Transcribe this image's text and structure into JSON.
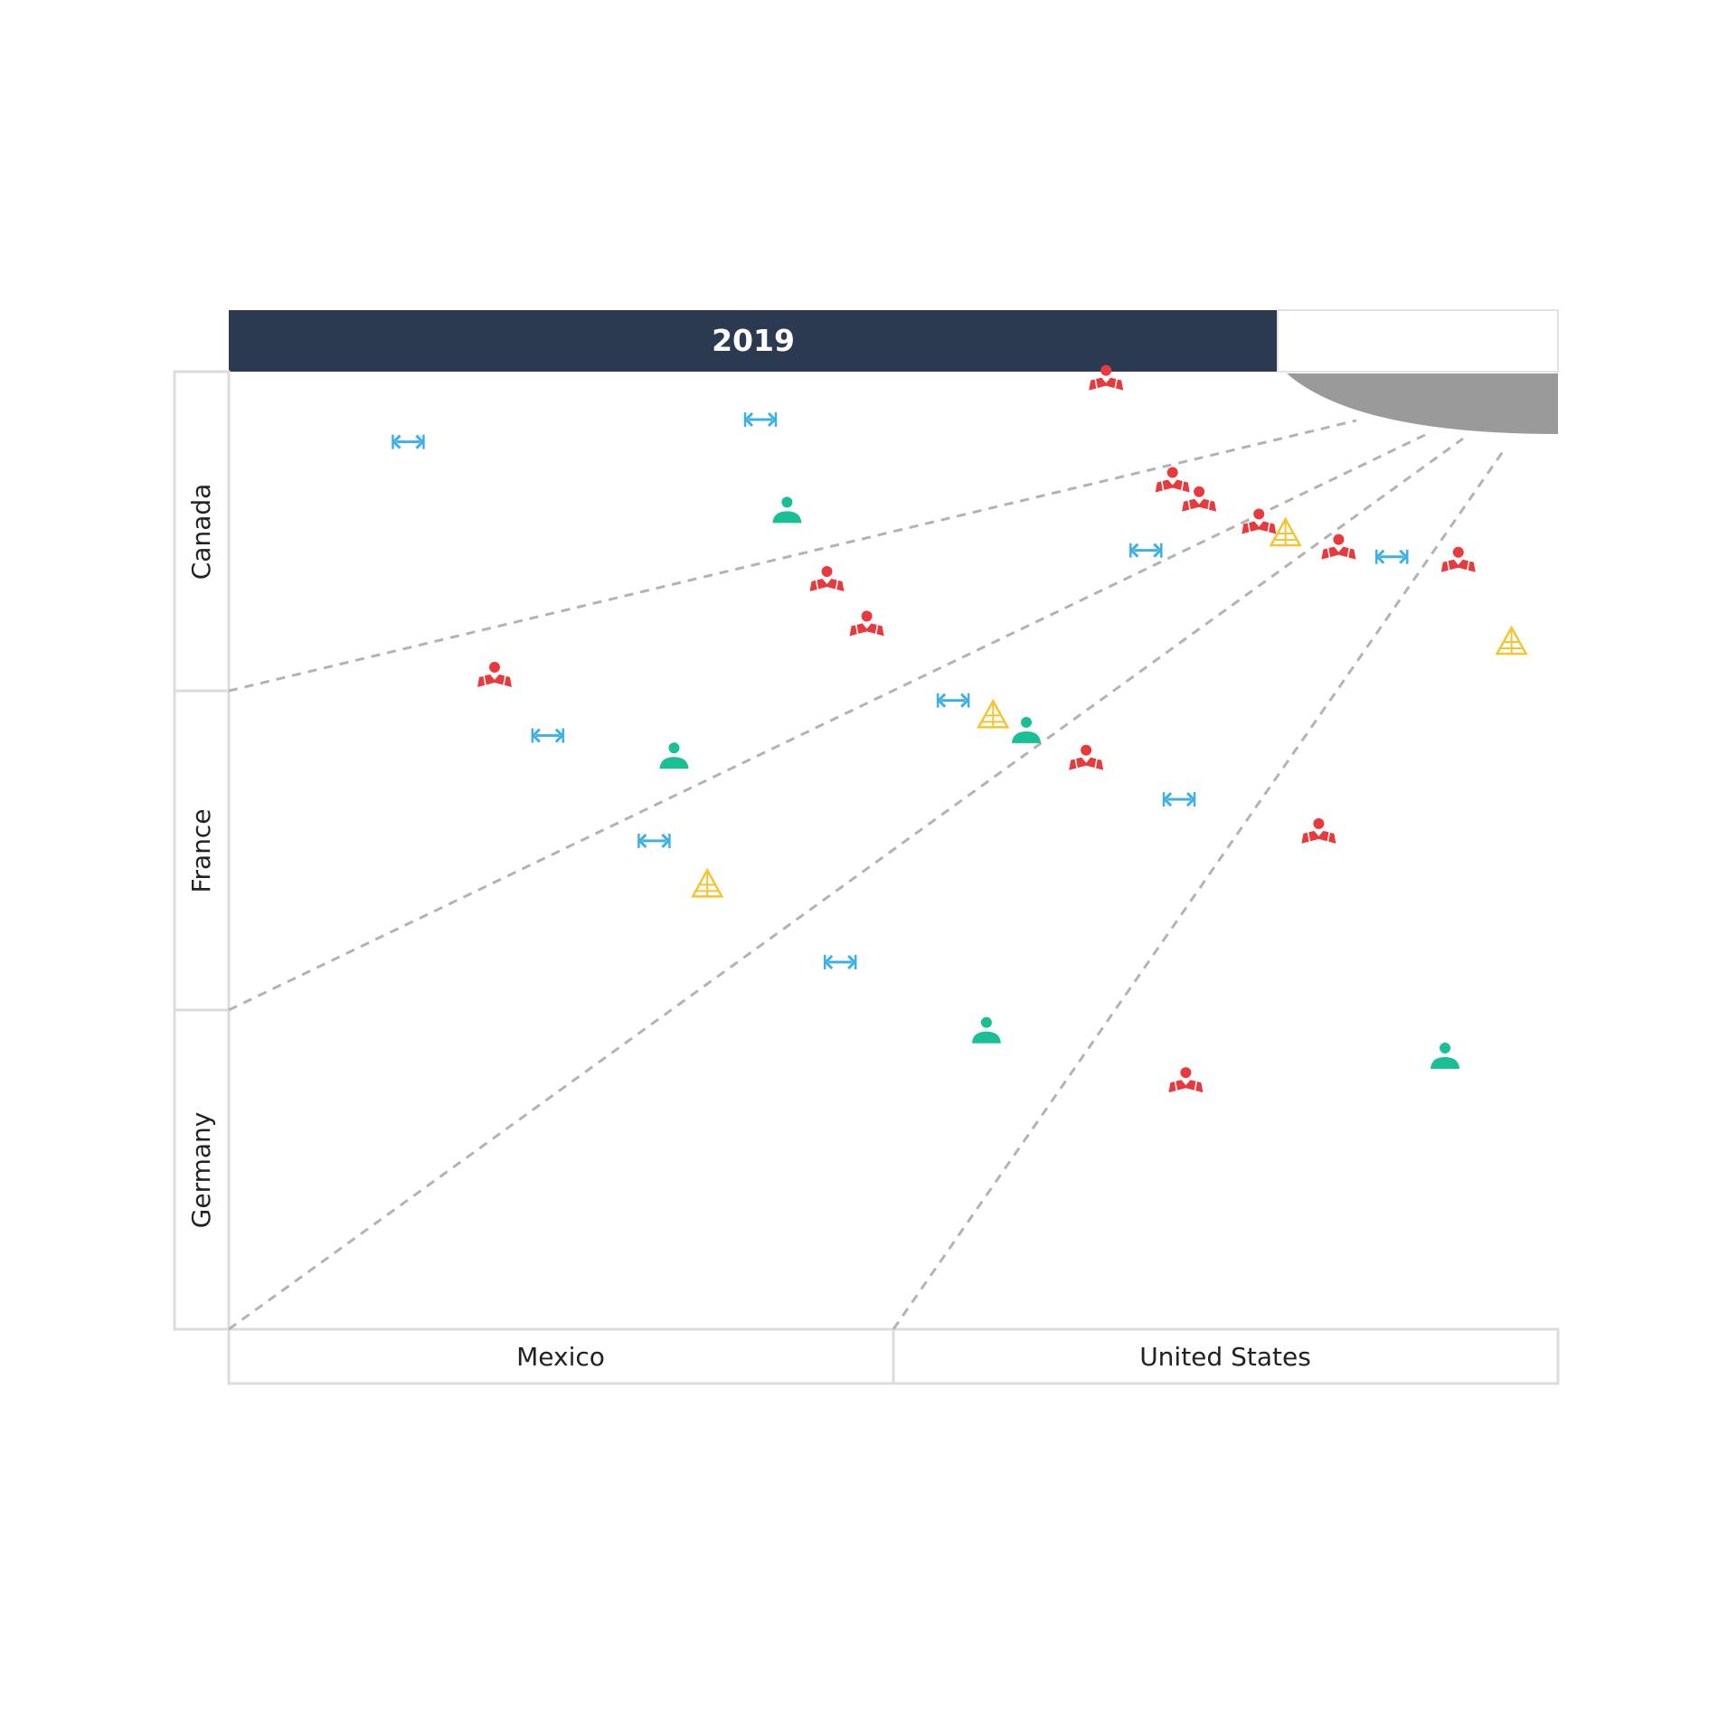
{
  "chart_data": {
    "type": "scatter",
    "title": "2019",
    "x_categories": [
      "Mexico",
      "United States"
    ],
    "y_categories": [
      "Canada",
      "France",
      "Germany"
    ],
    "xlim": [
      0,
      2
    ],
    "ylim": [
      0,
      3
    ],
    "grid": false,
    "legend": "none",
    "colors": {
      "header": "#2b3a51",
      "red-person-book-icon": "#e8393c",
      "blue-arrows-icon": "#3fb0e6",
      "green-person-icon": "#1bbf95",
      "yellow-pyramid-icon": "#f5c431",
      "quarter-ring": "#9a9a9a",
      "guide-lines": "#b3b3b3"
    },
    "points": [
      {
        "x": 0.27,
        "y": 2.78,
        "icon": "blue-arrows-icon"
      },
      {
        "x": 0.8,
        "y": 2.85,
        "icon": "blue-arrows-icon"
      },
      {
        "x": 0.84,
        "y": 2.56,
        "icon": "green-person-icon"
      },
      {
        "x": 0.9,
        "y": 2.34,
        "icon": "red-person-book-icon"
      },
      {
        "x": 0.96,
        "y": 2.2,
        "icon": "red-person-book-icon"
      },
      {
        "x": 0.4,
        "y": 2.04,
        "icon": "red-person-book-icon"
      },
      {
        "x": 1.32,
        "y": 2.97,
        "icon": "red-person-book-icon"
      },
      {
        "x": 1.42,
        "y": 2.65,
        "icon": "red-person-book-icon"
      },
      {
        "x": 1.46,
        "y": 2.59,
        "icon": "red-person-book-icon"
      },
      {
        "x": 1.55,
        "y": 2.52,
        "icon": "red-person-book-icon"
      },
      {
        "x": 1.59,
        "y": 2.49,
        "icon": "yellow-pyramid-icon"
      },
      {
        "x": 1.67,
        "y": 2.44,
        "icon": "red-person-book-icon"
      },
      {
        "x": 1.38,
        "y": 2.44,
        "icon": "blue-arrows-icon"
      },
      {
        "x": 1.75,
        "y": 2.42,
        "icon": "blue-arrows-icon"
      },
      {
        "x": 1.85,
        "y": 2.4,
        "icon": "red-person-book-icon"
      },
      {
        "x": 1.93,
        "y": 2.15,
        "icon": "yellow-pyramid-icon"
      },
      {
        "x": 0.48,
        "y": 1.86,
        "icon": "blue-arrows-icon"
      },
      {
        "x": 0.67,
        "y": 1.79,
        "icon": "green-person-icon"
      },
      {
        "x": 1.09,
        "y": 1.97,
        "icon": "blue-arrows-icon"
      },
      {
        "x": 1.15,
        "y": 1.92,
        "icon": "yellow-pyramid-icon"
      },
      {
        "x": 1.2,
        "y": 1.87,
        "icon": "green-person-icon"
      },
      {
        "x": 1.29,
        "y": 1.78,
        "icon": "red-person-book-icon"
      },
      {
        "x": 1.43,
        "y": 1.66,
        "icon": "blue-arrows-icon"
      },
      {
        "x": 0.64,
        "y": 1.53,
        "icon": "blue-arrows-icon"
      },
      {
        "x": 0.72,
        "y": 1.39,
        "icon": "yellow-pyramid-icon"
      },
      {
        "x": 1.64,
        "y": 1.55,
        "icon": "red-person-book-icon"
      },
      {
        "x": 0.92,
        "y": 1.15,
        "icon": "blue-arrows-icon"
      },
      {
        "x": 1.14,
        "y": 0.93,
        "icon": "green-person-icon"
      },
      {
        "x": 1.44,
        "y": 0.77,
        "icon": "red-person-book-icon"
      },
      {
        "x": 1.83,
        "y": 0.85,
        "icon": "green-person-icon"
      }
    ]
  }
}
